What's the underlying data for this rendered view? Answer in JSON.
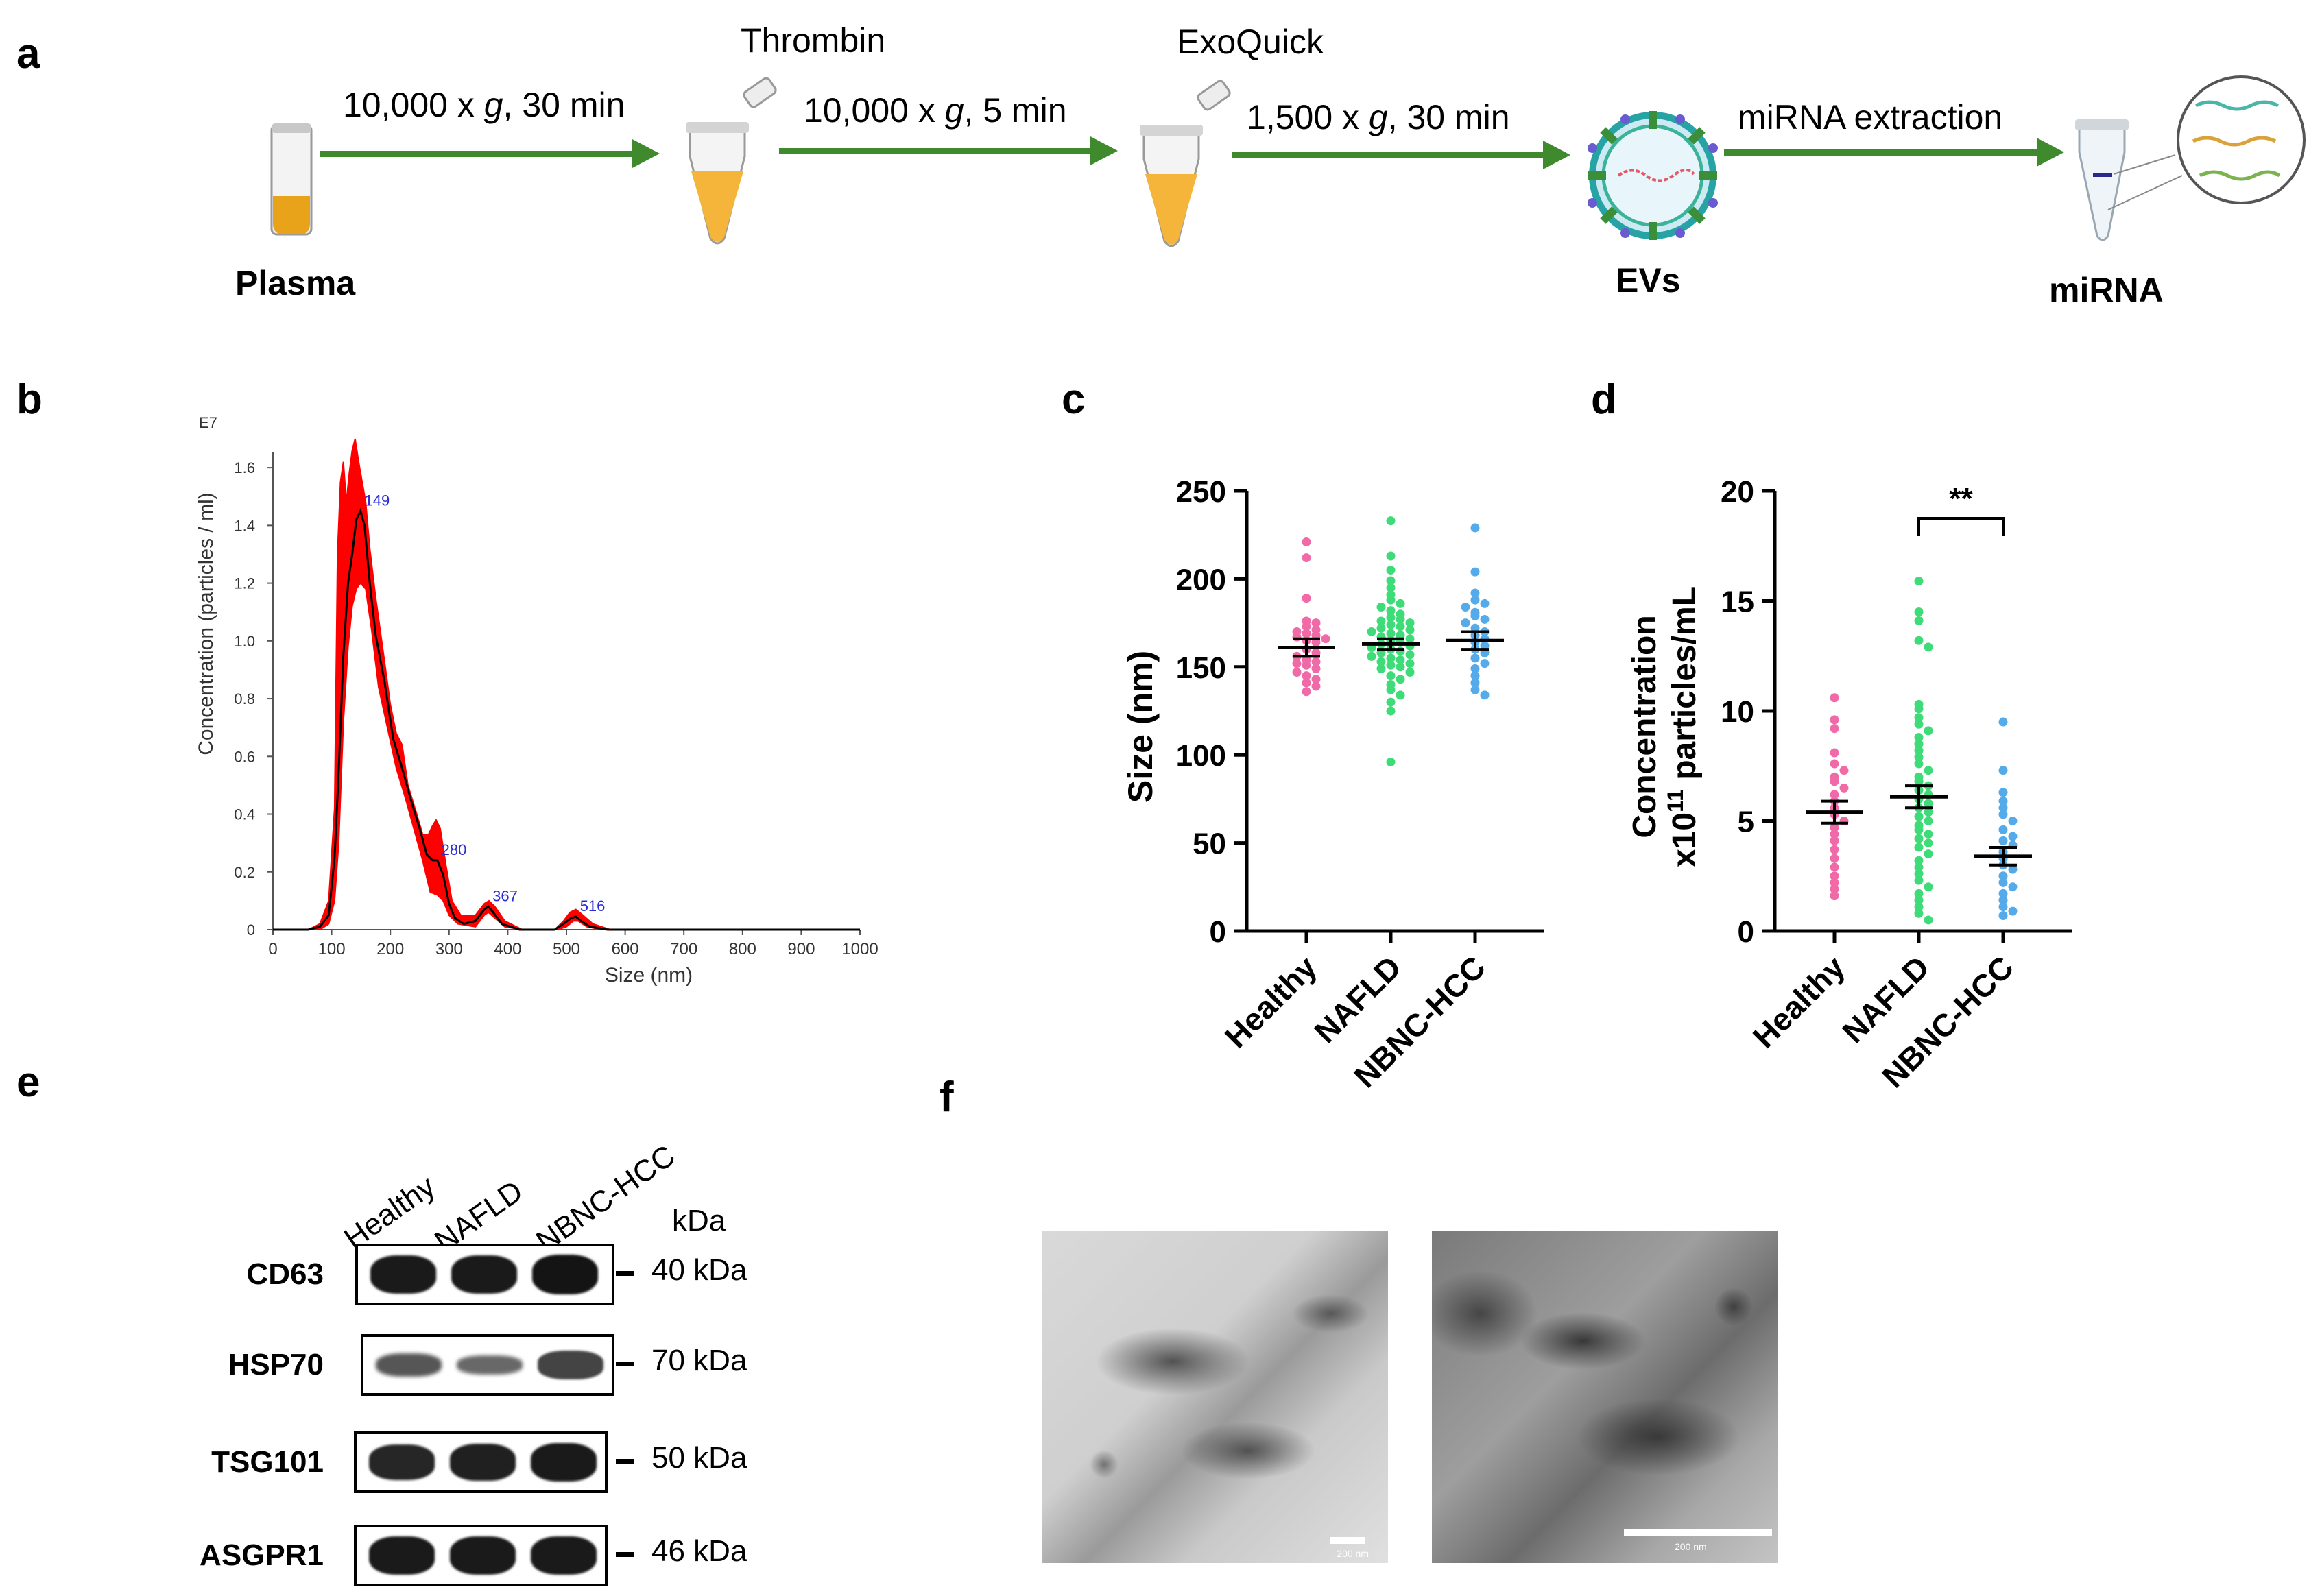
{
  "panels": {
    "a": "a",
    "b": "b",
    "c": "c",
    "d": "d",
    "e": "e",
    "f": "f"
  },
  "workflow": {
    "steps": [
      {
        "label": "Plasma"
      },
      {
        "label": "Thrombin"
      },
      {
        "label": "ExoQuick"
      },
      {
        "label": "EVs"
      },
      {
        "label": "miRNA"
      }
    ],
    "arrows": [
      {
        "pre": "10,000  x ",
        "g": "g",
        "post": ", 30 min"
      },
      {
        "pre": "10,000  x ",
        "g": "g",
        "post": ", 5 min"
      },
      {
        "pre": "1,500  x ",
        "g": "g",
        "post": ", 30 min"
      },
      {
        "text": "miRNA extraction"
      }
    ],
    "colors": {
      "arrow": "#3e8a2c",
      "plasma": "#e8a31a"
    }
  },
  "chart_data": [
    {
      "panel": "b",
      "type": "area",
      "scale_label": "E7",
      "xlabel": "Size (nm)",
      "ylabel": "Concentration (particles / ml)",
      "xlim": [
        0,
        1000
      ],
      "ylim": [
        0,
        1.7
      ],
      "xticks": [
        "0",
        "100",
        "200",
        "300",
        "400",
        "500",
        "600",
        "700",
        "800",
        "900",
        "1000"
      ],
      "yticks": [
        "0",
        "0.2",
        "0.4",
        "0.6",
        "0.8",
        "1.0",
        "1.2",
        "1.4",
        "1.6"
      ],
      "peak_labels": [
        "149",
        "280",
        "367",
        "516"
      ],
      "peaks_x": [
        149,
        280,
        367,
        516
      ],
      "mean_curve": [
        [
          0,
          0
        ],
        [
          60,
          0
        ],
        [
          80,
          0.01
        ],
        [
          95,
          0.05
        ],
        [
          105,
          0.25
        ],
        [
          112,
          0.55
        ],
        [
          120,
          0.95
        ],
        [
          128,
          1.2
        ],
        [
          135,
          1.3
        ],
        [
          142,
          1.42
        ],
        [
          149,
          1.45
        ],
        [
          156,
          1.4
        ],
        [
          165,
          1.2
        ],
        [
          175,
          1.02
        ],
        [
          190,
          0.86
        ],
        [
          205,
          0.66
        ],
        [
          220,
          0.56
        ],
        [
          235,
          0.45
        ],
        [
          250,
          0.35
        ],
        [
          262,
          0.26
        ],
        [
          272,
          0.24
        ],
        [
          280,
          0.24
        ],
        [
          290,
          0.19
        ],
        [
          300,
          0.09
        ],
        [
          310,
          0.04
        ],
        [
          325,
          0.02
        ],
        [
          345,
          0.03
        ],
        [
          360,
          0.07
        ],
        [
          367,
          0.08
        ],
        [
          375,
          0.06
        ],
        [
          390,
          0.02
        ],
        [
          420,
          0.0
        ],
        [
          480,
          0.0
        ],
        [
          495,
          0.02
        ],
        [
          508,
          0.04
        ],
        [
          516,
          0.045
        ],
        [
          525,
          0.03
        ],
        [
          540,
          0.01
        ],
        [
          570,
          0.0
        ],
        [
          1000,
          0.0
        ]
      ],
      "upper": [
        [
          0,
          0
        ],
        [
          60,
          0
        ],
        [
          80,
          0.02
        ],
        [
          95,
          0.1
        ],
        [
          105,
          0.42
        ],
        [
          110,
          1.3
        ],
        [
          115,
          1.55
        ],
        [
          120,
          1.62
        ],
        [
          125,
          1.48
        ],
        [
          130,
          1.58
        ],
        [
          135,
          1.66
        ],
        [
          140,
          1.7
        ],
        [
          146,
          1.62
        ],
        [
          152,
          1.55
        ],
        [
          158,
          1.48
        ],
        [
          165,
          1.32
        ],
        [
          175,
          1.15
        ],
        [
          190,
          0.93
        ],
        [
          200,
          0.78
        ],
        [
          210,
          0.68
        ],
        [
          220,
          0.64
        ],
        [
          230,
          0.5
        ],
        [
          245,
          0.4
        ],
        [
          255,
          0.33
        ],
        [
          265,
          0.33
        ],
        [
          272,
          0.36
        ],
        [
          278,
          0.38
        ],
        [
          285,
          0.35
        ],
        [
          295,
          0.22
        ],
        [
          305,
          0.1
        ],
        [
          320,
          0.05
        ],
        [
          345,
          0.05
        ],
        [
          360,
          0.09
        ],
        [
          368,
          0.1
        ],
        [
          378,
          0.08
        ],
        [
          395,
          0.03
        ],
        [
          425,
          0.0
        ],
        [
          480,
          0.0
        ],
        [
          495,
          0.03
        ],
        [
          506,
          0.06
        ],
        [
          516,
          0.07
        ],
        [
          528,
          0.05
        ],
        [
          545,
          0.02
        ],
        [
          575,
          0.0
        ],
        [
          1000,
          0.0
        ]
      ],
      "lower": [
        [
          0,
          0
        ],
        [
          60,
          0
        ],
        [
          80,
          0.0
        ],
        [
          95,
          0.02
        ],
        [
          105,
          0.1
        ],
        [
          112,
          0.3
        ],
        [
          120,
          0.72
        ],
        [
          128,
          0.98
        ],
        [
          135,
          1.12
        ],
        [
          142,
          1.18
        ],
        [
          149,
          1.2
        ],
        [
          158,
          1.18
        ],
        [
          168,
          1.04
        ],
        [
          180,
          0.84
        ],
        [
          195,
          0.7
        ],
        [
          210,
          0.56
        ],
        [
          225,
          0.46
        ],
        [
          240,
          0.35
        ],
        [
          255,
          0.24
        ],
        [
          268,
          0.13
        ],
        [
          280,
          0.12
        ],
        [
          290,
          0.1
        ],
        [
          300,
          0.05
        ],
        [
          315,
          0.02
        ],
        [
          345,
          0.01
        ],
        [
          360,
          0.05
        ],
        [
          367,
          0.06
        ],
        [
          378,
          0.04
        ],
        [
          395,
          0.01
        ],
        [
          425,
          0.0
        ],
        [
          485,
          0.0
        ],
        [
          500,
          0.01
        ],
        [
          512,
          0.03
        ],
        [
          520,
          0.03
        ],
        [
          535,
          0.01
        ],
        [
          560,
          0.0
        ],
        [
          1000,
          0.0
        ]
      ],
      "colors": {
        "band": "#ff0000",
        "line": "#000000",
        "peak_label": "#2b2bd6"
      }
    },
    {
      "panel": "c",
      "type": "scatter",
      "ylabel": "Size (nm)",
      "ylim": [
        0,
        250
      ],
      "yticks": [
        "0",
        "50",
        "100",
        "150",
        "200",
        "250"
      ],
      "categories": [
        "Healthy",
        "NAFLD",
        "NBNC-HCC"
      ],
      "colors": [
        "#f06aa8",
        "#3ddc78",
        "#55aaea"
      ],
      "means": [
        161,
        163,
        165
      ],
      "sems": [
        5,
        3,
        5
      ],
      "points": [
        [
          221,
          212,
          189,
          176,
          175,
          173,
          171,
          170,
          169,
          168,
          167,
          166,
          165,
          164,
          160,
          158,
          156,
          154,
          153,
          152,
          151,
          149,
          147,
          145,
          143,
          141,
          139,
          136
        ],
        [
          233,
          213,
          205,
          199,
          195,
          191,
          188,
          186,
          184,
          182,
          180,
          178,
          177,
          176,
          175,
          174,
          173,
          172,
          171,
          170,
          169,
          168,
          167,
          166,
          165,
          164,
          163,
          162,
          161,
          160,
          159,
          158,
          157,
          156,
          155,
          154,
          153,
          152,
          151,
          150,
          149,
          147,
          145,
          143,
          140,
          137,
          134,
          130,
          125,
          96
        ],
        [
          229,
          204,
          192,
          188,
          186,
          184,
          181,
          179,
          177,
          175,
          172,
          170,
          168,
          166,
          164,
          162,
          160,
          158,
          155,
          152,
          149,
          145,
          141,
          137,
          134
        ]
      ]
    },
    {
      "panel": "d",
      "type": "scatter",
      "ylabel": "Concentration",
      "ylabel2_pre": "x10",
      "ylabel2_sup": "11",
      "ylabel2_post": " particles/mL",
      "ylim": [
        0,
        20
      ],
      "yticks": [
        "0",
        "5",
        "10",
        "15",
        "20"
      ],
      "categories": [
        "Healthy",
        "NAFLD",
        "NBNC-HCC"
      ],
      "colors": [
        "#f06aa8",
        "#3ddc78",
        "#55aaea"
      ],
      "means": [
        5.4,
        6.1,
        3.4
      ],
      "sems": [
        0.5,
        0.5,
        0.4
      ],
      "significance": "**",
      "points": [
        [
          10.6,
          9.6,
          9.2,
          8.1,
          7.6,
          7.3,
          7.0,
          6.8,
          6.5,
          6.2,
          5.9,
          5.6,
          5.3,
          5.0,
          4.7,
          4.4,
          4.1,
          3.7,
          3.3,
          2.9,
          2.5,
          2.2,
          1.9,
          1.6
        ],
        [
          15.9,
          14.5,
          14.1,
          13.2,
          12.9,
          10.3,
          10.1,
          9.7,
          9.4,
          9.1,
          8.8,
          8.5,
          8.2,
          7.9,
          7.6,
          7.3,
          7.0,
          6.8,
          6.6,
          6.4,
          6.2,
          6.0,
          5.8,
          5.6,
          5.4,
          5.2,
          5.0,
          4.8,
          4.6,
          4.4,
          4.2,
          4.0,
          3.8,
          3.5,
          3.2,
          2.9,
          2.6,
          2.3,
          2.0,
          1.7,
          1.4,
          1.1,
          0.8,
          0.5
        ],
        [
          9.5,
          7.3,
          6.3,
          5.9,
          5.6,
          5.3,
          5.0,
          4.6,
          4.3,
          4.1,
          3.9,
          3.6,
          3.3,
          3.0,
          2.8,
          2.5,
          2.2,
          2.0,
          1.7,
          1.4,
          1.1,
          0.9,
          0.7
        ]
      ]
    }
  ],
  "western": {
    "lanes": [
      "Healthy",
      "NAFLD",
      "NBNC-HCC"
    ],
    "kda_header": "kDa",
    "proteins": [
      {
        "name": "CD63",
        "kda": "40 kDa",
        "intensity": [
          0.95,
          0.95,
          1.0
        ]
      },
      {
        "name": "HSP70",
        "kda": "70 kDa",
        "intensity": [
          0.45,
          0.3,
          0.6
        ]
      },
      {
        "name": "TSG101",
        "kda": "50 kDa",
        "intensity": [
          0.85,
          0.9,
          0.95
        ]
      },
      {
        "name": "ASGPR1",
        "kda": "46 kDa",
        "intensity": [
          0.95,
          0.95,
          0.95
        ]
      }
    ]
  },
  "tem": {
    "scalebars": [
      {
        "label": "200 nm"
      },
      {
        "label": "200 nm"
      }
    ]
  }
}
